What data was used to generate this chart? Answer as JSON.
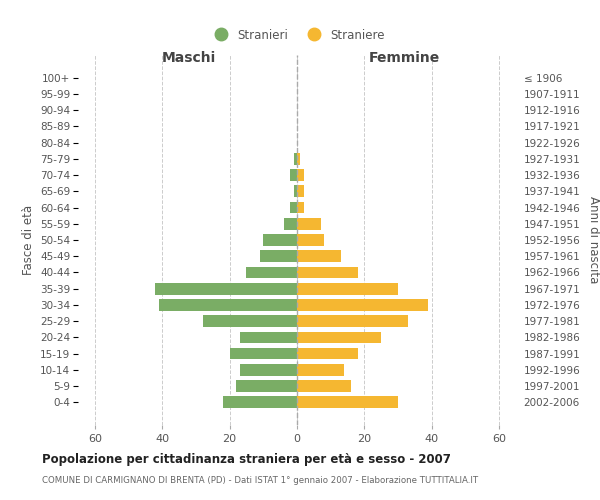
{
  "age_groups": [
    "100+",
    "95-99",
    "90-94",
    "85-89",
    "80-84",
    "75-79",
    "70-74",
    "65-69",
    "60-64",
    "55-59",
    "50-54",
    "45-49",
    "40-44",
    "35-39",
    "30-34",
    "25-29",
    "20-24",
    "15-19",
    "10-14",
    "5-9",
    "0-4"
  ],
  "birth_years": [
    "≤ 1906",
    "1907-1911",
    "1912-1916",
    "1917-1921",
    "1922-1926",
    "1927-1931",
    "1932-1936",
    "1937-1941",
    "1942-1946",
    "1947-1951",
    "1952-1956",
    "1957-1961",
    "1962-1966",
    "1967-1971",
    "1972-1976",
    "1977-1981",
    "1982-1986",
    "1987-1991",
    "1992-1996",
    "1997-2001",
    "2002-2006"
  ],
  "males": [
    0,
    0,
    0,
    0,
    0,
    1,
    2,
    1,
    2,
    4,
    10,
    11,
    15,
    42,
    41,
    28,
    17,
    20,
    17,
    18,
    22
  ],
  "females": [
    0,
    0,
    0,
    0,
    0,
    1,
    2,
    2,
    2,
    7,
    8,
    13,
    18,
    30,
    39,
    33,
    25,
    18,
    14,
    16,
    30
  ],
  "male_color": "#7aad65",
  "female_color": "#f5b731",
  "male_label": "Stranieri",
  "female_label": "Straniere",
  "title": "Popolazione per cittadinanza straniera per età e sesso - 2007",
  "subtitle": "COMUNE DI CARMIGNANO DI BRENTA (PD) - Dati ISTAT 1° gennaio 2007 - Elaborazione TUTTITALIA.IT",
  "xlabel_left": "Maschi",
  "xlabel_right": "Femmine",
  "ylabel_left": "Fasce di età",
  "ylabel_right": "Anni di nascita",
  "xlim": 65,
  "background_color": "#ffffff",
  "grid_color": "#cccccc"
}
